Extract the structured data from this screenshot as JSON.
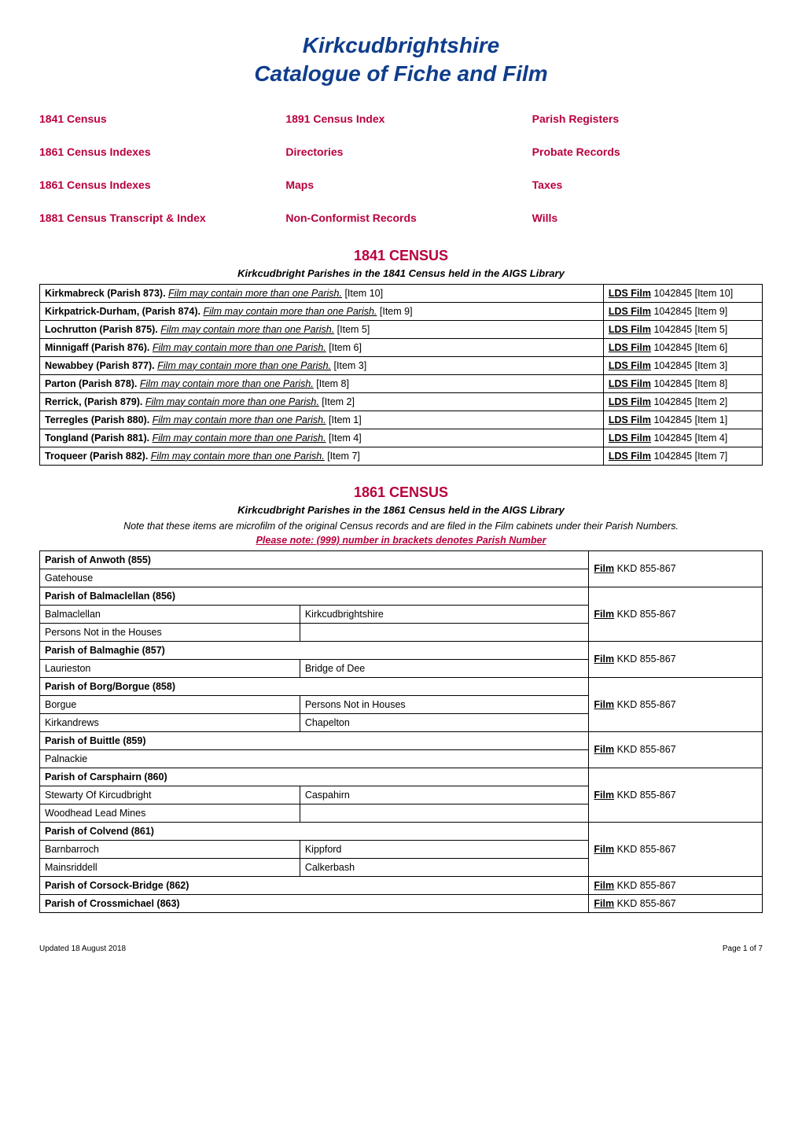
{
  "title": {
    "line1": "Kirkcudbrightshire",
    "line2": "Catalogue of Fiche and Film",
    "color": "#0f3d8c",
    "fontsize": 28
  },
  "nav": {
    "color": "#b8003c",
    "items": [
      "1841 Census",
      "1891 Census Index",
      "Parish Registers",
      "1861  Census Indexes",
      "Directories",
      "Probate Records",
      "1861  Census Indexes",
      "Maps",
      "Taxes",
      "1881 Census Transcript & Index",
      "Non-Conformist Records",
      "Wills"
    ]
  },
  "census1841": {
    "heading": "1841 CENSUS",
    "heading_color": "#b8003c",
    "sub": "Kirkcudbright Parishes in the 1841 Census held in the AIGS Library",
    "film_label": "LDS Film",
    "film_note_phrase": "Film may contain more than one Parish.",
    "rows": [
      {
        "parish": "Kirkmabreck (Parish 873).",
        "item": "[Item 10]",
        "film": " 1042845 [Item 10]"
      },
      {
        "parish": "Kirkpatrick-Durham, (Parish 874).",
        "item": "[Item 9]",
        "film": " 1042845 [Item 9]"
      },
      {
        "parish": "Lochrutton (Parish 875).",
        "item": "[Item 5]",
        "film": " 1042845 [Item 5]"
      },
      {
        "parish": "Minnigaff (Parish 876).",
        "item": "[Item 6]",
        "film": " 1042845 [Item 6]"
      },
      {
        "parish": "Newabbey (Parish 877).",
        "item": "[Item 3]",
        "film": " 1042845 [Item 3]"
      },
      {
        "parish": "Parton (Parish 878).",
        "item": "[Item 8]",
        "film": " 1042845 [Item 8]"
      },
      {
        "parish": "Rerrick, (Parish 879).",
        "item": "[Item 2]",
        "film": " 1042845 [Item 2]"
      },
      {
        "parish": "Terregles (Parish 880).",
        "item": "[Item 1]",
        "film": " 1042845 [Item 1]"
      },
      {
        "parish": "Tongland (Parish 881).",
        "item": "[Item 4]",
        "film": " 1042845 [Item 4]"
      },
      {
        "parish": "Troqueer (Parish 882).",
        "item": "[Item 7]",
        "film": " 1042845 [Item 7]"
      }
    ]
  },
  "census1861": {
    "heading": "1861 CENSUS",
    "heading_color": "#b8003c",
    "sub": "Kirkcudbright Parishes in the 1861 Census held in the AIGS Library",
    "note": "Note that these items are microfilm of the original Census records and are filed in the Film cabinets under their Parish Numbers.",
    "please_note": "Please note:  (999) number in brackets denotes Parish Number",
    "film_label": "Film",
    "film_ref": " KKD 855-867",
    "parishes": {
      "anwoth": {
        "head": "Parish of Anwoth (855)",
        "sub": [
          "Gatehouse"
        ]
      },
      "balmaclellan": {
        "head": "Parish of Balmaclellan (856)",
        "subA": [
          "Balmaclellan",
          "Persons Not in the Houses"
        ],
        "subB": [
          "Kirkcudbrightshire",
          ""
        ]
      },
      "balmaghie": {
        "head": "Parish of Balmaghie (857)",
        "subA": [
          "Laurieston"
        ],
        "subB": [
          "Bridge of Dee"
        ]
      },
      "borgue": {
        "head": "Parish of Borg/Borgue (858)",
        "subA": [
          "Borgue",
          "Kirkandrews"
        ],
        "subB": [
          "Persons Not in Houses",
          "Chapelton"
        ]
      },
      "buittle": {
        "head": "Parish of Buittle (859)",
        "sub": [
          "Palnackie"
        ]
      },
      "carsphairn": {
        "head": "Parish of Carsphairn (860)",
        "subA": [
          "Stewarty Of Kircudbright",
          "Woodhead Lead Mines"
        ],
        "subB": [
          "Caspahirn",
          ""
        ]
      },
      "colvend": {
        "head": "Parish of Colvend (861)",
        "subA": [
          "Barnbarroch",
          "Mainsriddell"
        ],
        "subB": [
          "Kippford",
          "Calkerbash"
        ]
      },
      "corsock": {
        "head": "Parish of Corsock-Bridge (862)"
      },
      "crossmichael": {
        "head": "Parish of Crossmichael (863)"
      }
    }
  },
  "footer": {
    "left": "Updated 18 August 2018",
    "right": "Page 1 of 7"
  }
}
